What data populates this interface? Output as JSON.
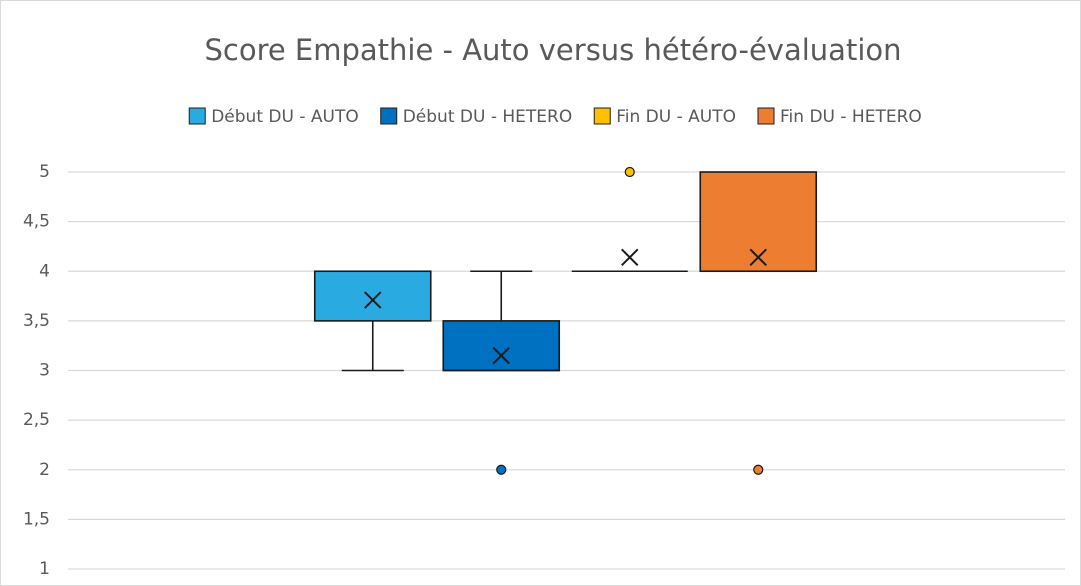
{
  "chart_data": {
    "type": "box",
    "title": "Score Empathie - Auto versus hétéro-évaluation",
    "ylim": [
      1,
      5
    ],
    "yticks": [
      1,
      {
        "value": 1.5,
        "label": "1,5"
      },
      2,
      {
        "value": 2.5,
        "label": "2,5"
      },
      3,
      {
        "value": 3.5,
        "label": "3,5"
      },
      4,
      {
        "value": 4.5,
        "label": "4,5"
      },
      5
    ],
    "grid": true,
    "legend": "top",
    "series": [
      {
        "name": "Début DU - AUTO",
        "color": "#29abe2",
        "min": 3,
        "q1": 3.5,
        "median": 4,
        "q3": 4,
        "max": 4,
        "mean": 3.71,
        "outliers": []
      },
      {
        "name": "Début DU - HETERO",
        "color": "#0070c0",
        "min": 3,
        "q1": 3,
        "median": 3,
        "q3": 3.5,
        "max": 4,
        "mean": 3.15,
        "outliers": [
          2
        ]
      },
      {
        "name": "Fin DU - AUTO",
        "color": "#ffc000",
        "min": 4,
        "q1": 4,
        "median": 4,
        "q3": 4,
        "max": 4,
        "mean": 4.14,
        "outliers": [
          5
        ]
      },
      {
        "name": "Fin DU - HETERO",
        "color": "#ed7d31",
        "min": 4,
        "q1": 4,
        "median": 4,
        "q3": 5,
        "max": 5,
        "mean": 4.14,
        "outliers": [
          2
        ]
      }
    ]
  }
}
